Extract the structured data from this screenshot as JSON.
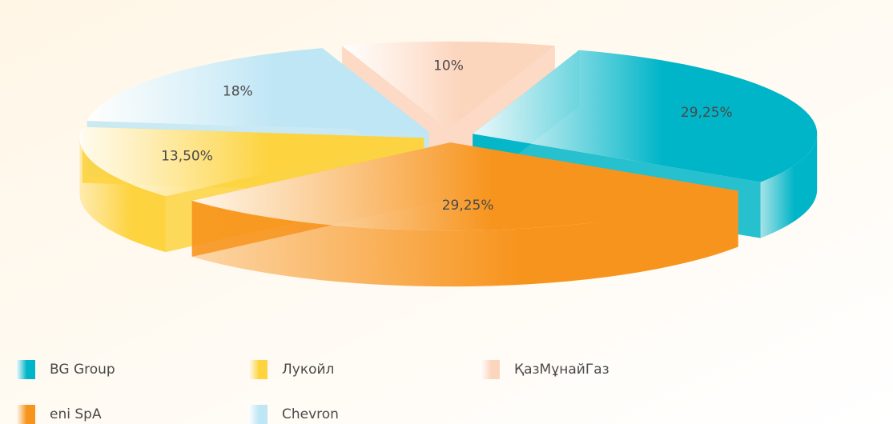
{
  "chart_data": {
    "type": "pie3d",
    "categories": [
      "BG Group",
      "Лукойл",
      "ҚазМұнайГаз",
      "eni SpA",
      "Chevron"
    ],
    "values": [
      29.25,
      13.5,
      10,
      29.25,
      18
    ],
    "value_labels": [
      "29,25%",
      "13,50%",
      "10%",
      "29,25%",
      "18%"
    ],
    "colors": [
      "#00b5c8",
      "#fdd33f",
      "#fcd5bd",
      "#f7941d",
      "#bfe6f5"
    ]
  }
}
